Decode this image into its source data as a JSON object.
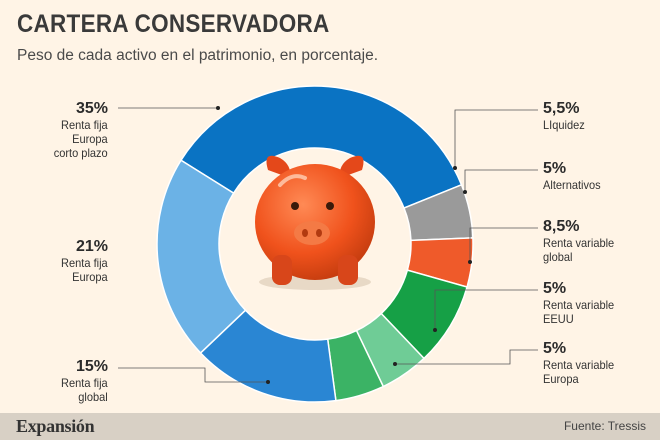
{
  "title": "CARTERA CONSERVADORA",
  "subtitle": "Peso de cada activo en el patrimonio, en porcentaje.",
  "footer": {
    "brand": "Expansión",
    "source": "Fuente: Tressis"
  },
  "chart_data": {
    "type": "pie",
    "donut": true,
    "center_icon": "piggy-bank-icon",
    "slices": [
      {
        "label": "Renta fija Europa corto plazo",
        "label_lines": [
          "Renta fija",
          "Europa",
          "corto plazo"
        ],
        "value": 35,
        "display": "35%",
        "color": "#0a73c3"
      },
      {
        "label": "Liquidez",
        "label_lines": [
          "LIquidez"
        ],
        "value": 5.5,
        "display": "5,5%",
        "color": "#9a9a9a"
      },
      {
        "label": "Alternativos",
        "label_lines": [
          "Alternativos"
        ],
        "value": 5,
        "display": "5%",
        "color": "#ef5a2a"
      },
      {
        "label": "Renta variable global",
        "label_lines": [
          "Renta variable",
          "global"
        ],
        "value": 8.5,
        "display": "8,5%",
        "color": "#16a046"
      },
      {
        "label": "Renta variable EEUU",
        "label_lines": [
          "Renta variable",
          "EEUU"
        ],
        "value": 5,
        "display": "5%",
        "color": "#6fcc96"
      },
      {
        "label": "Renta variable Europa",
        "label_lines": [
          "Renta variable",
          "Europa"
        ],
        "value": 5,
        "display": "5%",
        "color": "#3bb365"
      },
      {
        "label": "Renta fija global",
        "label_lines": [
          "Renta fija",
          "global"
        ],
        "value": 15,
        "display": "15%",
        "color": "#2a86d3"
      },
      {
        "label": "Renta fija Europa",
        "label_lines": [
          "Renta fija",
          "Europa"
        ],
        "value": 21,
        "display": "21%",
        "color": "#6bb2e6"
      }
    ]
  }
}
